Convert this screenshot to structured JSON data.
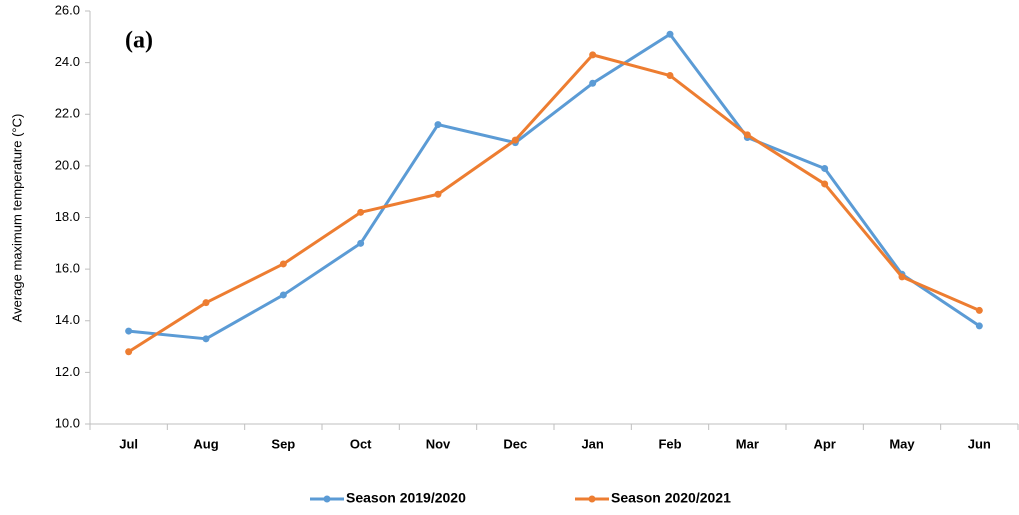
{
  "chart_data": {
    "type": "line",
    "annotation": "(a)",
    "y_label": "Average maximum temperature (°C)",
    "categories": [
      "Jul",
      "Aug",
      "Sep",
      "Oct",
      "Nov",
      "Dec",
      "Jan",
      "Feb",
      "Mar",
      "Apr",
      "May",
      "Jun"
    ],
    "series": [
      {
        "name": "Season 2019/2020",
        "color": "#5b9bd5",
        "values": [
          13.6,
          13.3,
          15.0,
          17.0,
          21.6,
          20.9,
          23.2,
          25.1,
          21.1,
          19.9,
          15.8,
          13.8
        ]
      },
      {
        "name": "Season 2020/2021",
        "color": "#ed7d31",
        "values": [
          12.8,
          14.7,
          16.2,
          18.2,
          18.9,
          21.0,
          24.3,
          23.5,
          21.2,
          19.3,
          15.7,
          14.4
        ]
      }
    ],
    "ylim": [
      10,
      26
    ],
    "yticks": [
      {
        "value": 10,
        "label": "10.0"
      },
      {
        "value": 12,
        "label": "12.0"
      },
      {
        "value": 14,
        "label": "14.0"
      },
      {
        "value": 16,
        "label": "16.0"
      },
      {
        "value": 18,
        "label": "18.0"
      },
      {
        "value": 20,
        "label": "20.0"
      },
      {
        "value": 22,
        "label": "22.0"
      },
      {
        "value": 24,
        "label": "24.0"
      },
      {
        "value": 26,
        "label": "26.0"
      }
    ],
    "grid": false,
    "legend": "bottom"
  }
}
